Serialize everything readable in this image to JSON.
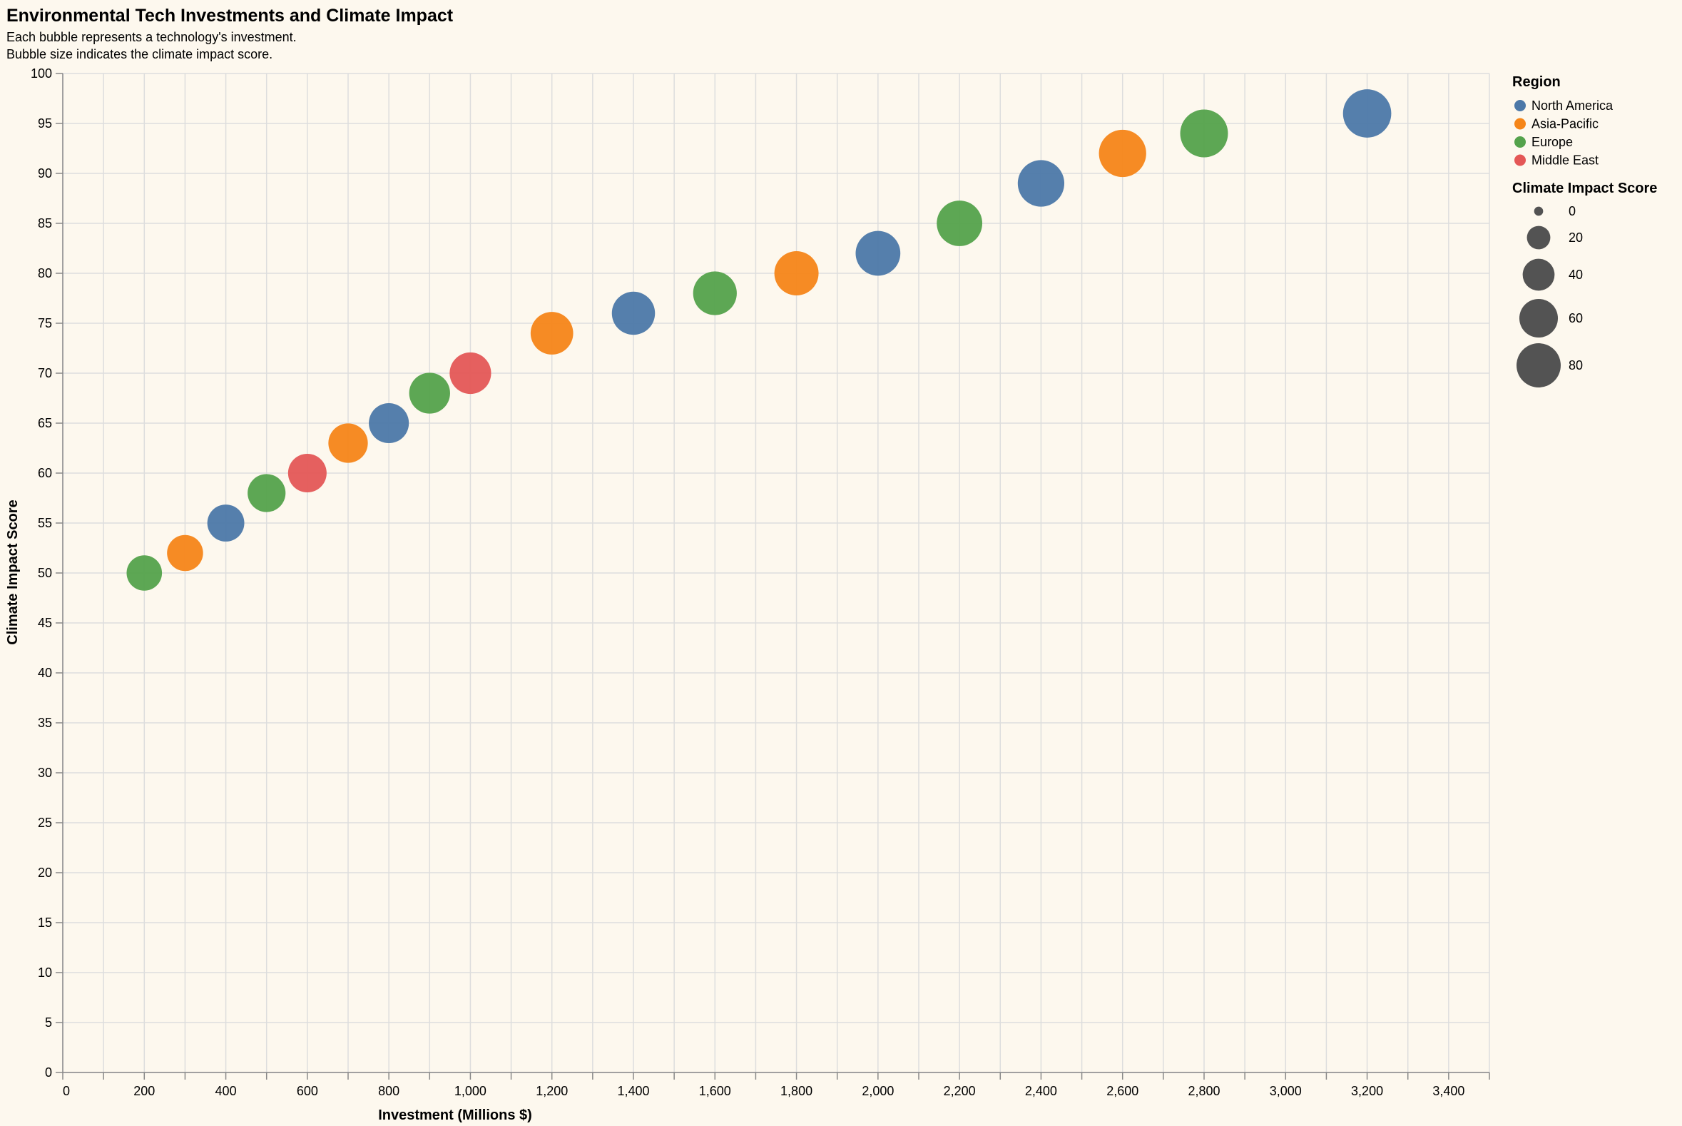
{
  "chart_data": {
    "type": "scatter",
    "title": "Environmental Tech Investments and Climate Impact",
    "subtitle": [
      "Each bubble represents a technology's investment.",
      "Bubble size indicates the climate impact score."
    ],
    "xlabel": "Investment (Millions $)",
    "ylabel": "Climate Impact Score",
    "xlim": [
      0,
      3500
    ],
    "ylim": [
      0,
      100
    ],
    "x_ticks": [
      0,
      200,
      400,
      600,
      800,
      1000,
      1200,
      1400,
      1600,
      1800,
      2000,
      2200,
      2400,
      2600,
      2800,
      3000,
      3200,
      3400
    ],
    "x_tick_labels": [
      "0",
      "200",
      "400",
      "600",
      "800",
      "1,000",
      "1,200",
      "1,400",
      "1,600",
      "1,800",
      "2,000",
      "2,200",
      "2,400",
      "2,600",
      "2,800",
      "3,000",
      "3,200",
      "3,400"
    ],
    "y_ticks": [
      0,
      5,
      10,
      15,
      20,
      25,
      30,
      35,
      40,
      45,
      50,
      55,
      60,
      65,
      70,
      75,
      80,
      85,
      90,
      95,
      100
    ],
    "grid": true,
    "legend_position": "right",
    "color_legend": {
      "title": "Region",
      "entries": [
        {
          "name": "North America",
          "color": "#4c78a8"
        },
        {
          "name": "Asia-Pacific",
          "color": "#f58518"
        },
        {
          "name": "Europe",
          "color": "#54a24b"
        },
        {
          "name": "Middle East",
          "color": "#e45756"
        }
      ]
    },
    "size_legend": {
      "title": "Climate Impact Score",
      "values": [
        0,
        20,
        40,
        60,
        80
      ]
    },
    "points": [
      {
        "x": 200,
        "y": 50,
        "region": "Europe"
      },
      {
        "x": 300,
        "y": 52,
        "region": "Asia-Pacific"
      },
      {
        "x": 400,
        "y": 55,
        "region": "North America"
      },
      {
        "x": 500,
        "y": 58,
        "region": "Europe"
      },
      {
        "x": 600,
        "y": 60,
        "region": "Middle East"
      },
      {
        "x": 700,
        "y": 63,
        "region": "Asia-Pacific"
      },
      {
        "x": 800,
        "y": 65,
        "region": "North America"
      },
      {
        "x": 900,
        "y": 68,
        "region": "Europe"
      },
      {
        "x": 1000,
        "y": 70,
        "region": "Middle East"
      },
      {
        "x": 1200,
        "y": 74,
        "region": "Asia-Pacific"
      },
      {
        "x": 1400,
        "y": 76,
        "region": "North America"
      },
      {
        "x": 1600,
        "y": 78,
        "region": "Europe"
      },
      {
        "x": 1800,
        "y": 80,
        "region": "Asia-Pacific"
      },
      {
        "x": 2000,
        "y": 82,
        "region": "North America"
      },
      {
        "x": 2200,
        "y": 85,
        "region": "Europe"
      },
      {
        "x": 2400,
        "y": 89,
        "region": "North America"
      },
      {
        "x": 2600,
        "y": 92,
        "region": "Asia-Pacific"
      },
      {
        "x": 2800,
        "y": 94,
        "region": "Europe"
      },
      {
        "x": 3200,
        "y": 96,
        "region": "North America"
      }
    ]
  }
}
